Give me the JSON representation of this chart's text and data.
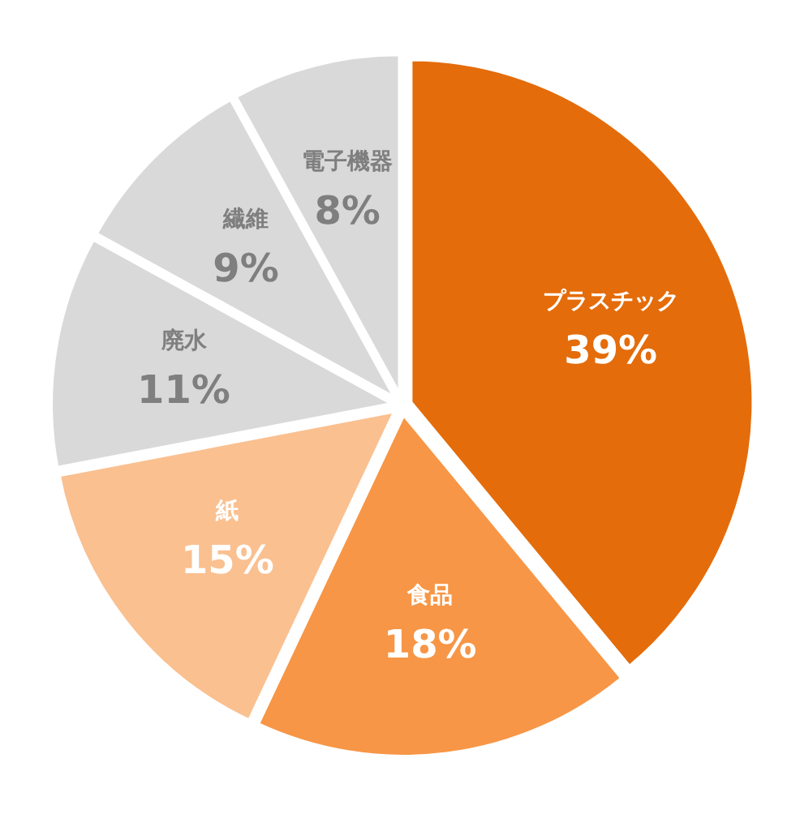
{
  "chart_data": {
    "type": "pie",
    "categories": [
      "プラスチック",
      "食品",
      "紙",
      "廃水",
      "繊維",
      "電子機器"
    ],
    "values": [
      39,
      18,
      15,
      11,
      9,
      8
    ],
    "colors": [
      "#e46c0a",
      "#f79646",
      "#fac090",
      "#d9d9d9",
      "#d9d9d9",
      "#d9d9d9"
    ],
    "value_labels": [
      "39%",
      "18%",
      "15%",
      "11%",
      "9%",
      "8%"
    ]
  }
}
